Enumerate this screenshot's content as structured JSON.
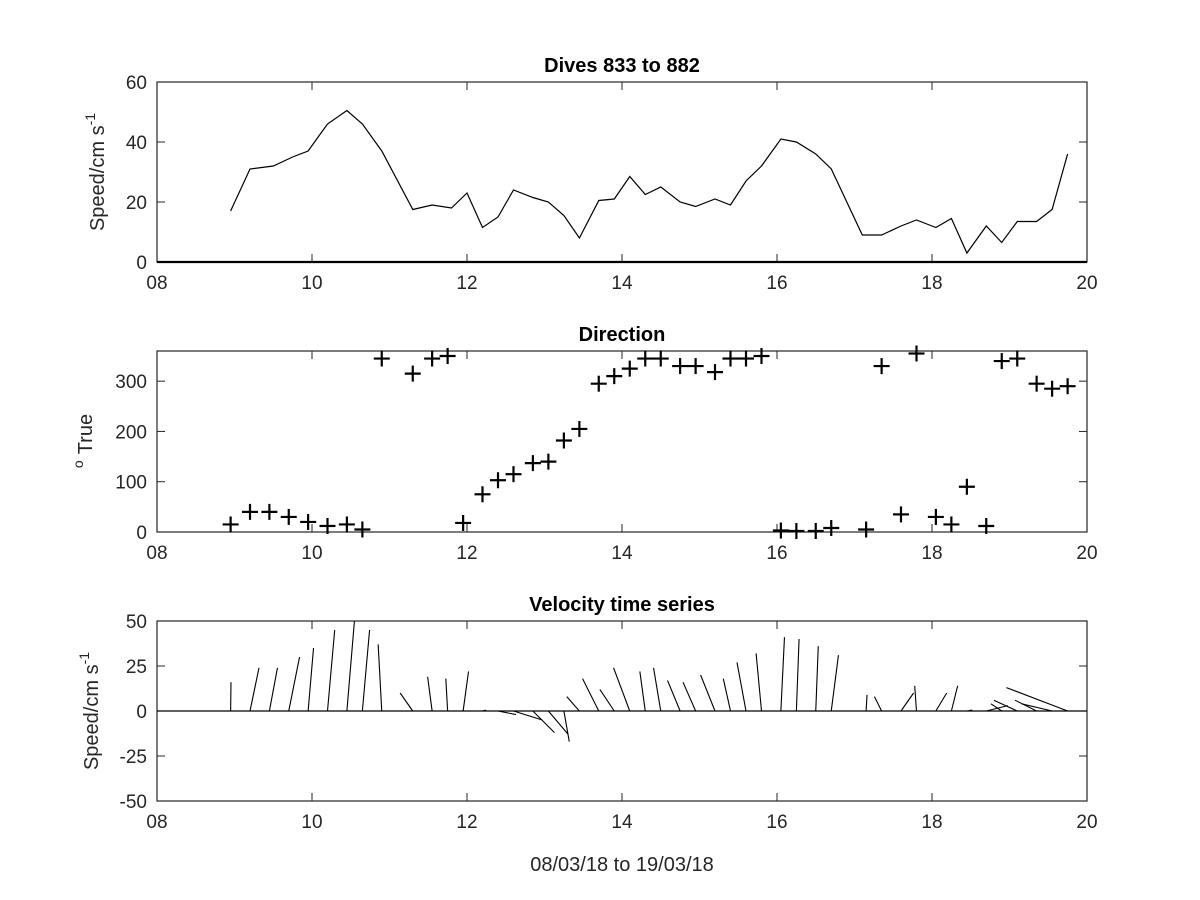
{
  "chart_data": [
    {
      "type": "line",
      "title": "Dives 833 to 882",
      "ylabel": "Speed/cm s",
      "ylabel_sup": "-1",
      "xlim": [
        8,
        20
      ],
      "ylim": [
        0,
        60
      ],
      "xticks": [
        "08",
        "10",
        "12",
        "14",
        "16",
        "18",
        "20"
      ],
      "yticks": [
        "0",
        "20",
        "40",
        "60"
      ],
      "series": [
        {
          "x": [
            8.95,
            9.2,
            9.5,
            9.75,
            9.95,
            10.2,
            10.45,
            10.65,
            10.9,
            11.3,
            11.55,
            11.8,
            12.0,
            12.2,
            12.4,
            12.6,
            12.85,
            13.05,
            13.25,
            13.45,
            13.7,
            13.9,
            14.1,
            14.3,
            14.5,
            14.75,
            14.95,
            15.2,
            15.4,
            15.6,
            15.8,
            16.05,
            16.25,
            16.5,
            16.7,
            17.1,
            17.35,
            17.6,
            17.8,
            18.05,
            18.25,
            18.45,
            18.7,
            18.9,
            19.1,
            19.35,
            19.55,
            19.75
          ],
          "values": [
            17,
            31,
            32,
            35,
            37,
            46,
            50.5,
            46,
            37,
            17.5,
            19,
            18,
            23,
            11.5,
            15,
            24,
            21.5,
            20,
            15.5,
            8,
            20.5,
            21,
            28.5,
            22.5,
            25,
            20,
            18.5,
            21,
            19,
            27,
            32,
            41,
            40,
            36,
            31,
            9,
            9,
            12,
            14,
            11.5,
            14.5,
            3,
            12,
            6.5,
            13.5,
            13.5,
            17.5,
            36
          ]
        }
      ]
    },
    {
      "type": "scatter",
      "title": "Direction",
      "ylabel": "True",
      "ylabel_sup": "o",
      "xlim": [
        8,
        20
      ],
      "ylim": [
        0,
        360
      ],
      "xticks": [
        "08",
        "10",
        "12",
        "14",
        "16",
        "18",
        "20"
      ],
      "yticks": [
        "0",
        "100",
        "200",
        "300"
      ],
      "marker": "+",
      "series": [
        {
          "x": [
            8.95,
            9.2,
            9.45,
            9.7,
            9.95,
            10.2,
            10.45,
            10.65,
            10.9,
            11.3,
            11.55,
            11.75,
            11.95,
            12.2,
            12.4,
            12.6,
            12.85,
            13.05,
            13.25,
            13.45,
            13.7,
            13.9,
            14.1,
            14.3,
            14.5,
            14.75,
            14.95,
            15.2,
            15.4,
            15.6,
            15.8,
            16.05,
            16.25,
            16.5,
            16.7,
            17.15,
            17.35,
            17.6,
            17.8,
            18.05,
            18.25,
            18.45,
            18.7,
            18.9,
            19.1,
            19.35,
            19.55,
            19.75
          ],
          "values": [
            15,
            40,
            40,
            30,
            20,
            12,
            15,
            5,
            345,
            315,
            345,
            350,
            18,
            75,
            103,
            115,
            137,
            140,
            182,
            205,
            295,
            310,
            325,
            345,
            345,
            330,
            330,
            318,
            345,
            345,
            350,
            3,
            2,
            2,
            8,
            5,
            330,
            35,
            355,
            30,
            15,
            90,
            12,
            340,
            345,
            295,
            285,
            290
          ]
        }
      ]
    },
    {
      "type": "line",
      "subtype": "stick",
      "title": "Velocity time series",
      "ylabel": "Speed/cm s",
      "ylabel_sup": "-1",
      "xlabel": "08/03/18 to 19/03/18",
      "xlim": [
        8,
        20
      ],
      "ylim": [
        -50,
        50
      ],
      "xticks": [
        "08",
        "10",
        "12",
        "14",
        "16",
        "18",
        "20"
      ],
      "yticks": [
        "50",
        "25",
        "0",
        "-25",
        "-50"
      ],
      "baseline": 0,
      "sticks": [
        {
          "t": 8.95,
          "u": 0.2,
          "v": 16
        },
        {
          "t": 9.2,
          "u": 5,
          "v": 24
        },
        {
          "t": 9.45,
          "u": 4.5,
          "v": 24
        },
        {
          "t": 9.7,
          "u": 6,
          "v": 30
        },
        {
          "t": 9.95,
          "u": 3,
          "v": 35
        },
        {
          "t": 10.2,
          "u": 4,
          "v": 45
        },
        {
          "t": 10.45,
          "u": 4.2,
          "v": 50
        },
        {
          "t": 10.65,
          "u": 4,
          "v": 45
        },
        {
          "t": 10.9,
          "u": -2,
          "v": 37
        },
        {
          "t": 11.3,
          "u": -7,
          "v": 10
        },
        {
          "t": 11.55,
          "u": -2.5,
          "v": 19
        },
        {
          "t": 11.75,
          "u": -1,
          "v": 18
        },
        {
          "t": 11.95,
          "u": 3,
          "v": 22
        },
        {
          "t": 12.2,
          "u": 2,
          "v": 0.5
        },
        {
          "t": 12.4,
          "u": 10,
          "v": -2
        },
        {
          "t": 12.6,
          "u": 16,
          "v": -5
        },
        {
          "t": 12.85,
          "u": 12,
          "v": -12
        },
        {
          "t": 13.05,
          "u": 11,
          "v": -13
        },
        {
          "t": 13.25,
          "u": 3,
          "v": -17
        },
        {
          "t": 13.45,
          "u": -7,
          "v": 8
        },
        {
          "t": 13.7,
          "u": -9,
          "v": 18
        },
        {
          "t": 13.9,
          "u": -8,
          "v": 12
        },
        {
          "t": 14.1,
          "u": -9,
          "v": 24
        },
        {
          "t": 14.3,
          "u": -3,
          "v": 22
        },
        {
          "t": 14.5,
          "u": -4,
          "v": 24
        },
        {
          "t": 14.75,
          "u": -7,
          "v": 17
        },
        {
          "t": 14.95,
          "u": -7,
          "v": 16
        },
        {
          "t": 15.2,
          "u": -8,
          "v": 20
        },
        {
          "t": 15.4,
          "u": -4,
          "v": 18
        },
        {
          "t": 15.6,
          "u": -5,
          "v": 27
        },
        {
          "t": 15.8,
          "u": -3,
          "v": 32
        },
        {
          "t": 16.05,
          "u": 2,
          "v": 41
        },
        {
          "t": 16.25,
          "u": 1.5,
          "v": 40
        },
        {
          "t": 16.5,
          "u": 1.4,
          "v": 36
        },
        {
          "t": 16.7,
          "u": 4,
          "v": 31
        },
        {
          "t": 17.15,
          "u": 0.5,
          "v": 9
        },
        {
          "t": 17.35,
          "u": -4,
          "v": 8
        },
        {
          "t": 17.6,
          "u": 7,
          "v": 10
        },
        {
          "t": 17.8,
          "u": -1,
          "v": 14
        },
        {
          "t": 18.05,
          "u": 6,
          "v": 10
        },
        {
          "t": 18.25,
          "u": 3.5,
          "v": 14
        },
        {
          "t": 18.45,
          "u": 3,
          "v": 0.5
        },
        {
          "t": 18.7,
          "u": 12,
          "v": 3
        },
        {
          "t": 18.9,
          "u": -6,
          "v": 4
        },
        {
          "t": 19.1,
          "u": -13,
          "v": 6
        },
        {
          "t": 19.35,
          "u": -12,
          "v": 6
        },
        {
          "t": 19.55,
          "u": -17,
          "v": 4
        },
        {
          "t": 19.75,
          "u": -34,
          "v": 13
        }
      ]
    }
  ]
}
